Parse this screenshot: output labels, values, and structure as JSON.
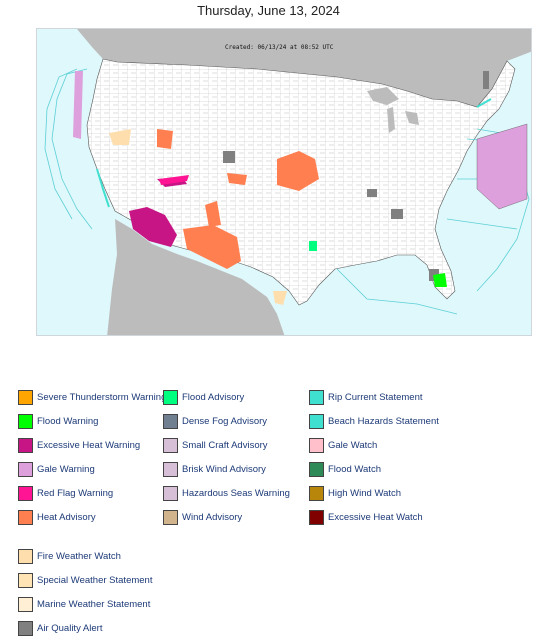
{
  "date_title": "Thursday, June 13, 2024",
  "map": {
    "created_stamp": "Created: 06/13/24 at 08:52 UTC"
  },
  "legend": {
    "col1": [
      {
        "label": "Severe Thunderstorm Warning",
        "color": "#FFA500"
      },
      {
        "label": "Flood Warning",
        "color": "#00FF00"
      },
      {
        "label": "Excessive Heat Warning",
        "color": "#C71585"
      },
      {
        "label": "Gale Warning",
        "color": "#DDA0DD"
      },
      {
        "label": "Red Flag Warning",
        "color": "#FF1493"
      },
      {
        "label": "Heat Advisory",
        "color": "#FF7F50"
      }
    ],
    "col2": [
      {
        "label": "Flood Advisory",
        "color": "#00FF7F"
      },
      {
        "label": "Dense Fog Advisory",
        "color": "#708090"
      },
      {
        "label": "Small Craft Advisory",
        "color": "#D8BFD8"
      },
      {
        "label": "Brisk Wind Advisory",
        "color": "#D8BFD8"
      },
      {
        "label": "Hazardous Seas Warning",
        "color": "#D8BFD8"
      },
      {
        "label": "Wind Advisory",
        "color": "#D2B48C"
      }
    ],
    "col3": [
      {
        "label": "Rip Current Statement",
        "color": "#40E0D0"
      },
      {
        "label": "Beach Hazards Statement",
        "color": "#40E0D0"
      },
      {
        "label": "Gale Watch",
        "color": "#FFC0CB"
      },
      {
        "label": "Flood Watch",
        "color": "#2E8B57"
      },
      {
        "label": "High Wind Watch",
        "color": "#B8860B"
      },
      {
        "label": "Excessive Heat Watch",
        "color": "#800000"
      }
    ],
    "col4": [
      {
        "label": "Fire Weather Watch",
        "color": "#FFDEAD"
      },
      {
        "label": "Special Weather Statement",
        "color": "#FFE4B5"
      },
      {
        "label": "Marine Weather Statement",
        "color": "#FFEFD5"
      },
      {
        "label": "Air Quality Alert",
        "color": "#808080"
      }
    ]
  }
}
